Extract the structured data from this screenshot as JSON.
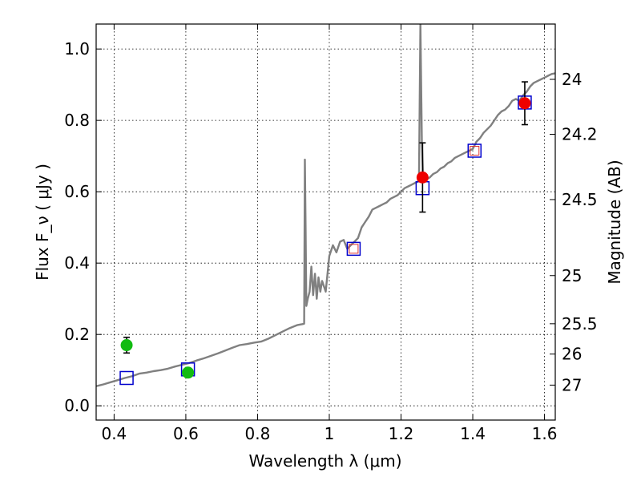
{
  "chart_data": {
    "type": "scatter",
    "xlabel": "Wavelength  λ (μm)",
    "ylabel": "Flux  F_ν  ( μJy )",
    "right_ylabel": "Magnitude (AB)",
    "xlim": [
      0.35,
      1.63
    ],
    "ylim": [
      -0.04,
      1.07
    ],
    "grid": true,
    "x_ticks": [
      0.4,
      0.6,
      0.8,
      1.0,
      1.2,
      1.4,
      1.6
    ],
    "x_tick_labels": [
      "0.4",
      "0.6",
      "0.8",
      "1",
      "1.2",
      "1.4",
      "1.6"
    ],
    "y_ticks": [
      0.0,
      0.2,
      0.4,
      0.6,
      0.8,
      1.0
    ],
    "y_tick_labels": [
      "0.0",
      "0.2",
      "0.4",
      "0.6",
      "0.8",
      "1.0"
    ],
    "right_ticks": [
      {
        "label": "24",
        "flux": 0.915
      },
      {
        "label": "24.2",
        "flux": 0.761
      },
      {
        "label": "24.5",
        "flux": 0.578
      },
      {
        "label": "25",
        "flux": 0.365
      },
      {
        "label": "25.5",
        "flux": 0.23
      },
      {
        "label": "26",
        "flux": 0.145
      },
      {
        "label": "27",
        "flux": 0.058
      }
    ],
    "model_spectrum": {
      "color": "#808080",
      "points": [
        [
          0.35,
          0.055
        ],
        [
          0.37,
          0.06
        ],
        [
          0.39,
          0.066
        ],
        [
          0.41,
          0.072
        ],
        [
          0.43,
          0.078
        ],
        [
          0.45,
          0.083
        ],
        [
          0.47,
          0.09
        ],
        [
          0.49,
          0.093
        ],
        [
          0.51,
          0.097
        ],
        [
          0.53,
          0.1
        ],
        [
          0.55,
          0.104
        ],
        [
          0.57,
          0.11
        ],
        [
          0.59,
          0.115
        ],
        [
          0.61,
          0.12
        ],
        [
          0.63,
          0.127
        ],
        [
          0.65,
          0.133
        ],
        [
          0.67,
          0.14
        ],
        [
          0.69,
          0.147
        ],
        [
          0.71,
          0.155
        ],
        [
          0.73,
          0.163
        ],
        [
          0.75,
          0.17
        ],
        [
          0.77,
          0.173
        ],
        [
          0.79,
          0.177
        ],
        [
          0.81,
          0.18
        ],
        [
          0.83,
          0.188
        ],
        [
          0.85,
          0.198
        ],
        [
          0.87,
          0.208
        ],
        [
          0.89,
          0.218
        ],
        [
          0.91,
          0.226
        ],
        [
          0.925,
          0.229
        ],
        [
          0.93,
          0.23
        ],
        [
          0.932,
          0.69
        ],
        [
          0.934,
          0.5
        ],
        [
          0.936,
          0.28
        ],
        [
          0.94,
          0.3
        ],
        [
          0.945,
          0.32
        ],
        [
          0.95,
          0.39
        ],
        [
          0.955,
          0.31
        ],
        [
          0.96,
          0.37
        ],
        [
          0.965,
          0.3
        ],
        [
          0.97,
          0.36
        ],
        [
          0.975,
          0.32
        ],
        [
          0.98,
          0.35
        ],
        [
          0.99,
          0.32
        ],
        [
          1.0,
          0.42
        ],
        [
          1.01,
          0.45
        ],
        [
          1.02,
          0.43
        ],
        [
          1.03,
          0.46
        ],
        [
          1.04,
          0.465
        ],
        [
          1.05,
          0.44
        ],
        [
          1.06,
          0.45
        ],
        [
          1.07,
          0.46
        ],
        [
          1.08,
          0.47
        ],
        [
          1.09,
          0.5
        ],
        [
          1.1,
          0.515
        ],
        [
          1.11,
          0.53
        ],
        [
          1.12,
          0.55
        ],
        [
          1.13,
          0.555
        ],
        [
          1.14,
          0.56
        ],
        [
          1.15,
          0.565
        ],
        [
          1.16,
          0.57
        ],
        [
          1.17,
          0.58
        ],
        [
          1.18,
          0.585
        ],
        [
          1.19,
          0.59
        ],
        [
          1.2,
          0.6
        ],
        [
          1.21,
          0.61
        ],
        [
          1.22,
          0.615
        ],
        [
          1.23,
          0.62
        ],
        [
          1.24,
          0.625
        ],
        [
          1.25,
          0.63
        ],
        [
          1.254,
          1.07
        ],
        [
          1.258,
          0.74
        ],
        [
          1.262,
          0.63
        ],
        [
          1.27,
          0.635
        ],
        [
          1.28,
          0.64
        ],
        [
          1.29,
          0.65
        ],
        [
          1.3,
          0.655
        ],
        [
          1.31,
          0.665
        ],
        [
          1.32,
          0.67
        ],
        [
          1.33,
          0.68
        ],
        [
          1.34,
          0.685
        ],
        [
          1.35,
          0.695
        ],
        [
          1.36,
          0.7
        ],
        [
          1.37,
          0.705
        ],
        [
          1.38,
          0.71
        ],
        [
          1.39,
          0.715
        ],
        [
          1.4,
          0.72
        ],
        [
          1.41,
          0.74
        ],
        [
          1.42,
          0.75
        ],
        [
          1.43,
          0.765
        ],
        [
          1.44,
          0.775
        ],
        [
          1.45,
          0.785
        ],
        [
          1.46,
          0.8
        ],
        [
          1.47,
          0.815
        ],
        [
          1.48,
          0.825
        ],
        [
          1.49,
          0.83
        ],
        [
          1.5,
          0.84
        ],
        [
          1.51,
          0.855
        ],
        [
          1.52,
          0.86
        ],
        [
          1.53,
          0.855
        ],
        [
          1.54,
          0.87
        ],
        [
          1.55,
          0.88
        ],
        [
          1.56,
          0.895
        ],
        [
          1.57,
          0.905
        ],
        [
          1.58,
          0.91
        ],
        [
          1.59,
          0.915
        ],
        [
          1.6,
          0.92
        ],
        [
          1.61,
          0.925
        ],
        [
          1.62,
          0.93
        ],
        [
          1.63,
          0.932
        ]
      ]
    },
    "model_photometry": {
      "color": "#0000cc",
      "marker": "square",
      "points": [
        [
          0.435,
          0.078
        ],
        [
          0.606,
          0.102
        ],
        [
          1.068,
          0.44
        ],
        [
          1.26,
          0.61
        ],
        [
          1.405,
          0.715
        ],
        [
          1.545,
          0.85
        ]
      ]
    },
    "observed_green": {
      "color": "#11bb11",
      "points": [
        {
          "x": 0.435,
          "y": 0.17,
          "err": 0.022
        },
        {
          "x": 0.606,
          "y": 0.093,
          "err": 0.012
        }
      ]
    },
    "observed_red": {
      "color": "#ee0000",
      "points": [
        {
          "x": 1.26,
          "y": 0.64,
          "err": 0.097
        },
        {
          "x": 1.545,
          "y": 0.848,
          "err": 0.06
        }
      ]
    },
    "small_red_squares": {
      "color": "#dd3333",
      "points": [
        [
          1.068,
          0.44
        ],
        [
          1.405,
          0.715
        ]
      ]
    }
  }
}
